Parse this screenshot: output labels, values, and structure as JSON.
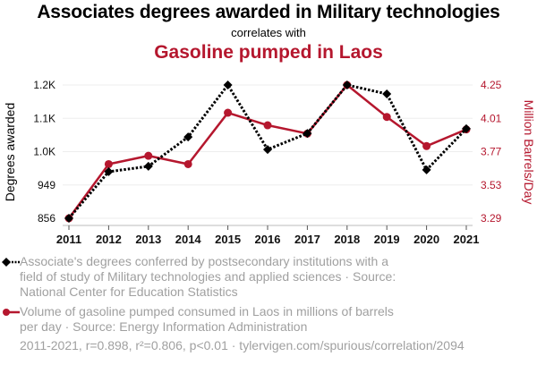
{
  "header": {
    "title": "Associates degrees awarded in Military technologies",
    "subtitle": "correlates with",
    "title2": "Gasoline pumped in Laos"
  },
  "legend": {
    "series1": "Associate's degrees conferred by postsecondary institutions with a field of study of Military technologies and applied sciences · Source: National Center for Education Statistics",
    "series2": "Volume of gasoline pumped consumed in Laos in millions of barrels per day · Source: Energy Information Administration"
  },
  "footer": {
    "text": "2011-2021, r=0.898, r²=0.806, p<0.01 · tylervigen.com/spurious/correlation/2094"
  },
  "colors": {
    "series1": "#000000",
    "series2": "#b5172e",
    "grid": "#eeeeee"
  },
  "chart_data": {
    "type": "line",
    "title": "Associates degrees awarded in Military technologies correlates with Gasoline pumped in Laos",
    "x": [
      "2011",
      "2012",
      "2013",
      "2014",
      "2015",
      "2016",
      "2017",
      "2018",
      "2019",
      "2020",
      "2021"
    ],
    "series": [
      {
        "name": "Associate's degrees conferred (Military technologies and applied sciences)",
        "axis": "left",
        "style": "dotted",
        "marker": "diamond",
        "values": [
          856,
          986,
          1001,
          1083,
          1228,
          1048,
          1093,
          1228,
          1203,
          991,
          1106
        ]
      },
      {
        "name": "Volume of gasoline pumped consumed in Laos (million barrels/day)",
        "axis": "right",
        "style": "solid",
        "marker": "circle",
        "values": [
          3.29,
          3.68,
          3.74,
          3.68,
          4.05,
          3.96,
          3.9,
          4.25,
          4.02,
          3.81,
          3.93
        ]
      }
    ],
    "ylabel": "Degrees awarded",
    "ylabel_right": "Million Barrels/Day",
    "xlabel": "",
    "ylim": [
      856,
      1228
    ],
    "ylim_right": [
      3.29,
      4.25
    ],
    "yticks": [
      {
        "value": 856,
        "label": "856"
      },
      {
        "value": 949,
        "label": "949"
      },
      {
        "value": 1042,
        "label": "1.0K"
      },
      {
        "value": 1135,
        "label": "1.1K"
      },
      {
        "value": 1228,
        "label": "1.2K"
      }
    ],
    "yticks_right": [
      {
        "value": 3.29,
        "label": "3.29"
      },
      {
        "value": 3.53,
        "label": "3.53"
      },
      {
        "value": 3.77,
        "label": "3.77"
      },
      {
        "value": 4.01,
        "label": "4.01"
      },
      {
        "value": 4.25,
        "label": "4.25"
      }
    ],
    "grid": true,
    "legend_position": "bottom"
  }
}
